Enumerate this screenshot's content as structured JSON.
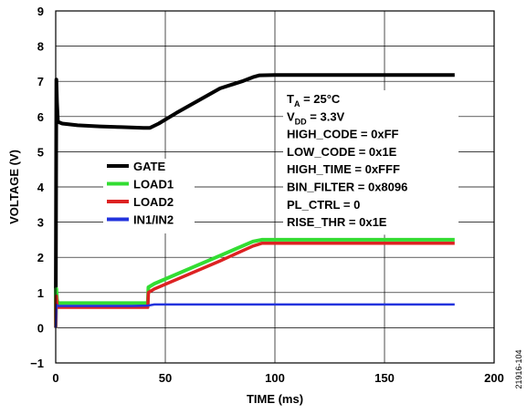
{
  "chart_data": {
    "type": "line",
    "xlabel": "TIME (ms)",
    "ylabel": "VOLTAGE (V)",
    "xlim": [
      0,
      200
    ],
    "ylim": [
      -1,
      9
    ],
    "xticks": [
      0,
      50,
      100,
      150,
      200
    ],
    "yticks": [
      -1,
      0,
      1,
      2,
      3,
      4,
      5,
      6,
      7,
      8,
      9
    ],
    "grid": true,
    "legend_position": "center-left",
    "series": [
      {
        "name": "GATE",
        "color": "#000000",
        "x": [
          0,
          0.3,
          0.6,
          1,
          3,
          10,
          20,
          30,
          40,
          43,
          47,
          55,
          65,
          75,
          85,
          90,
          93,
          100,
          120,
          140,
          160,
          182
        ],
        "y": [
          0,
          7.05,
          6.4,
          5.85,
          5.8,
          5.75,
          5.72,
          5.7,
          5.68,
          5.68,
          5.8,
          6.1,
          6.45,
          6.8,
          7.0,
          7.12,
          7.17,
          7.18,
          7.18,
          7.18,
          7.18,
          7.18
        ]
      },
      {
        "name": "LOAD1",
        "color": "#33dd33",
        "x": [
          0,
          0.3,
          0.6,
          1,
          5,
          20,
          35,
          42,
          42.3,
          45,
          60,
          75,
          90,
          94,
          100,
          120,
          140,
          160,
          182
        ],
        "y": [
          0,
          1.1,
          0.8,
          0.7,
          0.7,
          0.7,
          0.7,
          0.7,
          1.15,
          1.25,
          1.65,
          2.05,
          2.45,
          2.5,
          2.5,
          2.5,
          2.5,
          2.5,
          2.5
        ]
      },
      {
        "name": "LOAD2",
        "color": "#dd2222",
        "x": [
          0,
          0.3,
          0.6,
          1,
          5,
          20,
          35,
          42,
          42.3,
          45,
          60,
          75,
          90,
          94,
          100,
          120,
          140,
          160,
          182
        ],
        "y": [
          0,
          0.9,
          0.65,
          0.58,
          0.58,
          0.58,
          0.58,
          0.58,
          1.0,
          1.1,
          1.5,
          1.9,
          2.32,
          2.4,
          2.4,
          2.4,
          2.4,
          2.4,
          2.4
        ]
      },
      {
        "name": "IN1/IN2",
        "color": "#2233dd",
        "x": [
          0,
          0.3,
          1,
          5,
          20,
          35,
          42,
          45,
          60,
          80,
          100,
          120,
          140,
          160,
          182
        ],
        "y": [
          0,
          0.65,
          0.62,
          0.62,
          0.62,
          0.62,
          0.63,
          0.66,
          0.66,
          0.66,
          0.66,
          0.66,
          0.66,
          0.66,
          0.66
        ]
      }
    ],
    "annotations": [
      {
        "main": "T",
        "sub": "A",
        "rest": " = 25°C"
      },
      {
        "main": "V",
        "sub": "DD",
        "rest": " = 3.3V"
      },
      {
        "text": "HIGH_CODE = 0xFF"
      },
      {
        "text": "LOW_CODE = 0x1E"
      },
      {
        "text": "HIGH_TIME = 0xFFF"
      },
      {
        "text": "BIN_FILTER = 0x8096"
      },
      {
        "text": "PL_CTRL = 0"
      },
      {
        "text": "RISE_THR = 0x1E"
      }
    ],
    "figure_id": "21916-104"
  }
}
